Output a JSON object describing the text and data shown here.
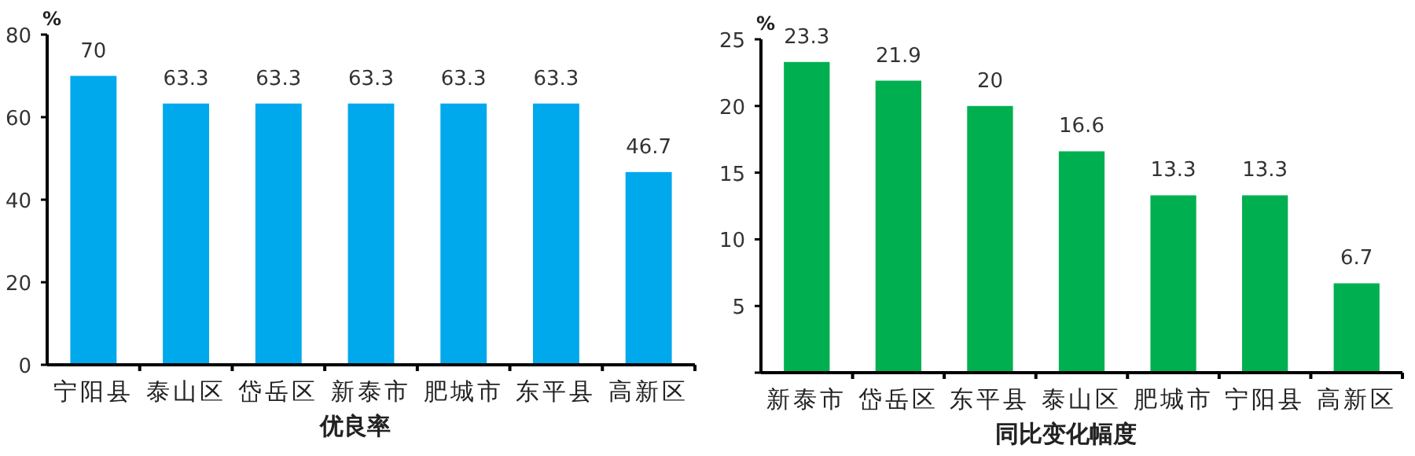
{
  "chart_data": [
    {
      "type": "bar",
      "xlabel": "优良率",
      "ylabel": "%",
      "categories": [
        "宁阳县",
        "泰山区",
        "岱岳区",
        "新泰市",
        "肥城市",
        "东平县",
        "高新区"
      ],
      "values": [
        70,
        63.3,
        63.3,
        63.3,
        63.3,
        63.3,
        46.7
      ],
      "color": "#00a8ec",
      "ylim": [
        0,
        80
      ],
      "yticks": [
        0,
        20,
        40,
        60,
        80
      ],
      "data_labels": true
    },
    {
      "type": "bar",
      "xlabel": "同比变化幅度",
      "ylabel": "%",
      "categories": [
        "新泰市",
        "岱岳区",
        "东平县",
        "泰山区",
        "肥城市",
        "宁阳县",
        "高新区"
      ],
      "values": [
        23.3,
        21.9,
        20,
        16.6,
        13.3,
        13.3,
        6.7
      ],
      "color": "#00b050",
      "ylim": [
        0,
        25
      ],
      "yticks": [
        {
          "value": 0,
          "label": null
        },
        5,
        10,
        15,
        20,
        25
      ],
      "data_labels": true
    }
  ]
}
